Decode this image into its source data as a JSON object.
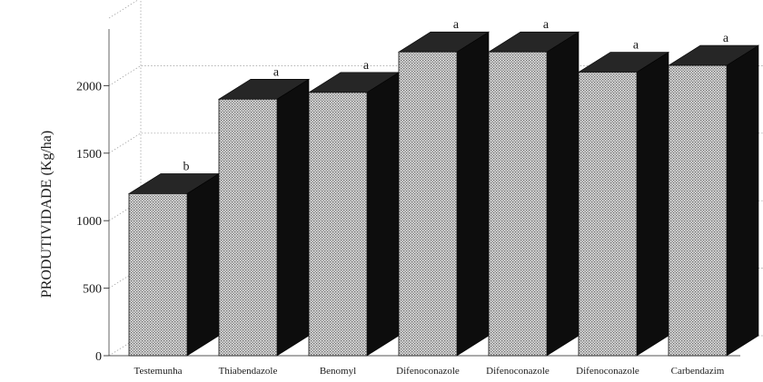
{
  "chart_data": {
    "type": "bar",
    "title": "",
    "ylabel": "PRODUTIVIDADE (Kg/ha)",
    "xlabel": "",
    "ylim": [
      0,
      2500
    ],
    "yticks": [
      0,
      500,
      1000,
      1500,
      2000
    ],
    "grid": true,
    "legend": "none",
    "style": "3d-bars",
    "categories": [
      "Testemunha",
      "Thiabendazole",
      "Benomyl",
      "Difenoconazole",
      "Difenoconazole",
      "Difenoconazole",
      "Carbendazim"
    ],
    "values": [
      1200,
      1900,
      1950,
      2250,
      2250,
      2100,
      2150
    ],
    "significance_letters": [
      "b",
      "a",
      "a",
      "a",
      "a",
      "a",
      "a"
    ]
  },
  "colors": {
    "bar_front": "#d9d9d9",
    "bar_top": "#262626",
    "bar_side": "#0d0d0d",
    "grid": "#9a9a9a",
    "text": "#1a1a1a"
  }
}
